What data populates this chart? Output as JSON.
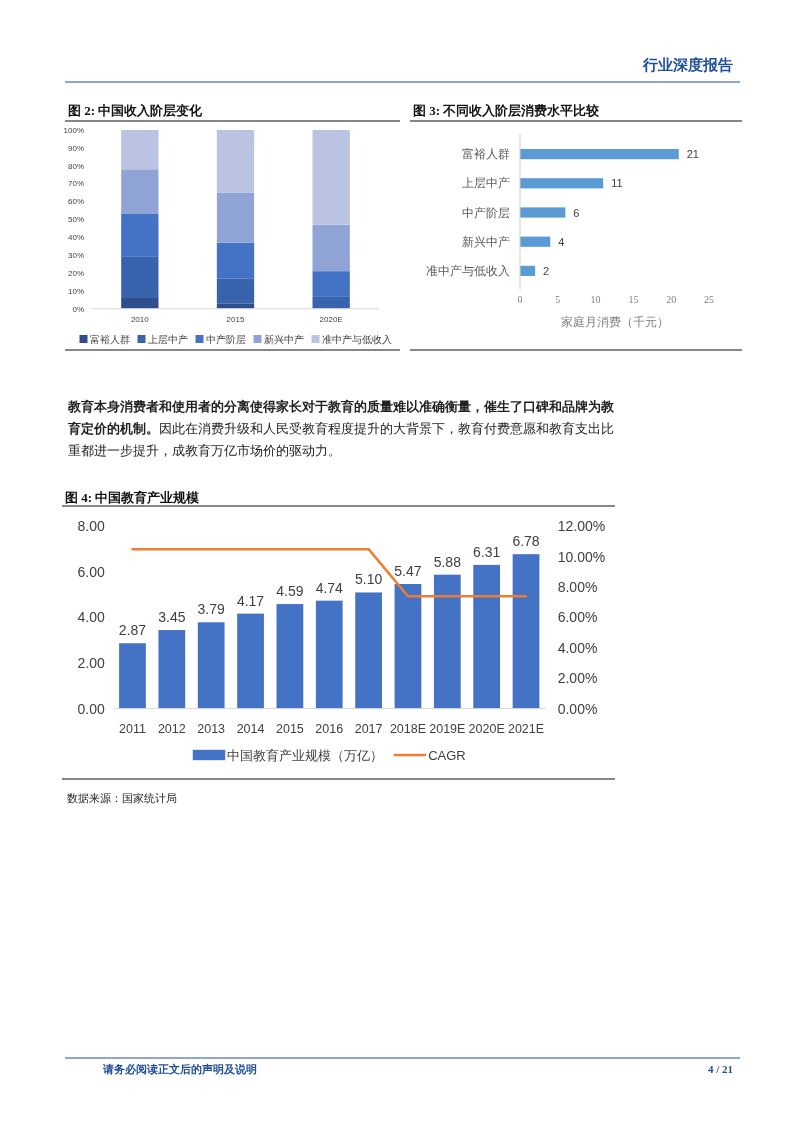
{
  "chart_data": [
    {
      "type": "bar",
      "title": "图  2:  中国收入阶层变化",
      "stacked": true,
      "legend": "bottom",
      "categories": [
        "2010",
        "2015",
        "2020E"
      ],
      "series": [
        {
          "name": "富裕人群",
          "color": "#2e4f8c",
          "values": [
            6,
            3,
            0
          ]
        },
        {
          "name": "上层中产",
          "color": "#3a63ad",
          "values": [
            23,
            14,
            7
          ]
        },
        {
          "name": "中产阶层",
          "color": "#4472c4",
          "values": [
            24,
            20,
            14
          ]
        },
        {
          "name": "新兴中产",
          "color": "#8fa4d5",
          "values": [
            25,
            28,
            26
          ]
        },
        {
          "name": "准中产与低收入",
          "color": "#bac4e2",
          "values": [
            22,
            35,
            53
          ]
        }
      ],
      "ylim": [
        0,
        100
      ],
      "yticks": [
        {
          "value": 0,
          "label": "0%"
        },
        {
          "value": 10,
          "label": "10%"
        },
        {
          "value": 20,
          "label": "20%"
        },
        {
          "value": 30,
          "label": "30%"
        },
        {
          "value": 40,
          "label": "40%"
        },
        {
          "value": 50,
          "label": "50%"
        },
        {
          "value": 60,
          "label": "60%"
        },
        {
          "value": 70,
          "label": "70%"
        },
        {
          "value": 80,
          "label": "80%"
        },
        {
          "value": 90,
          "label": "90%"
        },
        {
          "value": 100,
          "label": "100%"
        }
      ]
    },
    {
      "type": "bar",
      "title": "图  3:  不同收入阶层消费水平比较",
      "orientation": "horizontal",
      "data_labels": true,
      "categories": [
        "富裕人群",
        "上层中产",
        "中产阶层",
        "新兴中产",
        "准中产与低收入"
      ],
      "values": [
        21,
        11,
        6,
        4,
        2
      ],
      "color": "#5b9bd5",
      "xlim": [
        0,
        25
      ],
      "xticks": [
        0,
        5,
        10,
        15,
        20,
        25
      ],
      "xlabel": "家庭月消费（千元）"
    },
    {
      "type": "bar",
      "title": "图  4:  中国教育产业规模",
      "legend": "bottom",
      "categories": [
        "2011",
        "2012",
        "2013",
        "2014",
        "2015",
        "2016",
        "2017",
        "2018E",
        "2019E",
        "2020E",
        "2021E"
      ],
      "series": [
        {
          "name": "中国教育产业规模（万亿）",
          "color": "#4472c4",
          "values": [
            2.87,
            3.45,
            3.79,
            4.17,
            4.59,
            4.74,
            5.1,
            5.47,
            5.88,
            6.31,
            6.78
          ],
          "value_labels": [
            "2.87",
            "3.45",
            "3.79",
            "4.17",
            "4.59",
            "4.74",
            "5.10",
            "5.47",
            "5.88",
            "6.31",
            "6.78"
          ]
        },
        {
          "name": "CAGR",
          "type": "line",
          "axis": "y2",
          "color": "#ed7d31",
          "values": [
            10.5,
            10.5,
            10.5,
            10.5,
            10.5,
            10.5,
            10.5,
            7.4,
            7.4,
            7.4,
            7.4
          ]
        }
      ],
      "ylim": [
        0,
        8
      ],
      "yticks": [
        {
          "value": 0,
          "label": "0.00"
        },
        {
          "value": 2,
          "label": "2.00"
        },
        {
          "value": 4,
          "label": "4.00"
        },
        {
          "value": 6,
          "label": "6.00"
        },
        {
          "value": 8,
          "label": "8.00"
        }
      ],
      "y2lim": [
        0,
        12
      ],
      "y2ticks": [
        {
          "value": 0,
          "label": "0.00%"
        },
        {
          "value": 2,
          "label": "2.00%"
        },
        {
          "value": 4,
          "label": "4.00%"
        },
        {
          "value": 6,
          "label": "6.00%"
        },
        {
          "value": 8,
          "label": "8.00%"
        },
        {
          "value": 10,
          "label": "10.00%"
        },
        {
          "value": 12,
          "label": "12.00%"
        }
      ],
      "annotations": [
        "数据来源：国家统计局"
      ]
    },
    {
      "type": "other",
      "annotations": [
        "行业深度报告",
        "教育本身消费者和使用者的分离使得家长对于教育的质量难以准确衡量，催生了口碑和品牌为教育定价的机制。",
        "因此在消费升级和人民受教育程度提升的大背景下，教育付费意愿和教育支出比重都进一步提升，成教育万亿市场价的驱动力。",
        "请务必阅读正文后的声明及说明",
        "4 / 21"
      ]
    }
  ]
}
